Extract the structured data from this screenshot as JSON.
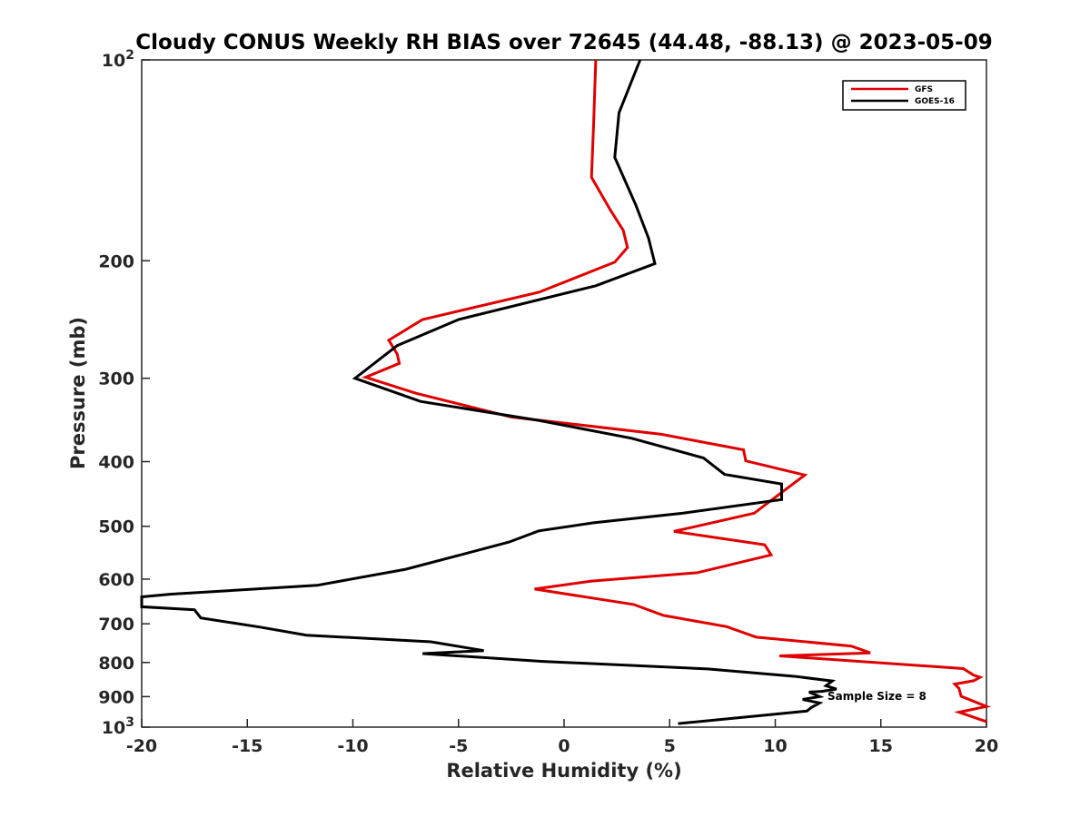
{
  "chart_data": {
    "type": "line",
    "title": "Cloudy CONUS Weekly RH BIAS over 72645 (44.48, -88.13) @ 2023-05-09",
    "xlabel": "Relative Humidity (%)",
    "ylabel": "Pressure (mb)",
    "xlim": [
      -20,
      20
    ],
    "ylim": [
      1000,
      100
    ],
    "y_scale": "log",
    "y_inverted": true,
    "grid": false,
    "x_ticks": [
      "-20",
      "-15",
      "-10",
      "-5",
      "0",
      "5",
      "10",
      "15",
      "20"
    ],
    "y_ticks": [
      {
        "value": 100,
        "base": "10",
        "exp": "2"
      },
      {
        "value": 200,
        "label": "200"
      },
      {
        "value": 300,
        "label": "300"
      },
      {
        "value": 400,
        "label": "400"
      },
      {
        "value": 500,
        "label": "500"
      },
      {
        "value": 600,
        "label": "600"
      },
      {
        "value": 700,
        "label": "700"
      },
      {
        "value": 800,
        "label": "800"
      },
      {
        "value": 900,
        "label": "900"
      },
      {
        "value": 1000,
        "base": "10",
        "exp": "3"
      }
    ],
    "legend_position": "top-right",
    "annotation": "Sample Size = 8",
    "series": [
      {
        "name": "GFS",
        "color": "#e00000",
        "points": [
          [
            1.5,
            100
          ],
          [
            1.4,
            125
          ],
          [
            1.3,
            150
          ],
          [
            2.2,
            168
          ],
          [
            2.8,
            180
          ],
          [
            3.0,
            191
          ],
          [
            2.4,
            201
          ],
          [
            -1.2,
            223
          ],
          [
            -6.7,
            245
          ],
          [
            -8.3,
            263
          ],
          [
            -7.9,
            276
          ],
          [
            -7.8,
            285
          ],
          [
            -9.4,
            299
          ],
          [
            -7.0,
            316
          ],
          [
            -2.5,
            343
          ],
          [
            4.6,
            364
          ],
          [
            8.5,
            384
          ],
          [
            8.6,
            399
          ],
          [
            11.4,
            419
          ],
          [
            9.7,
            460
          ],
          [
            9.0,
            478
          ],
          [
            5.2,
            509
          ],
          [
            9.5,
            533
          ],
          [
            9.8,
            552
          ],
          [
            6.3,
            587
          ],
          [
            1.3,
            604
          ],
          [
            -1.4,
            621
          ],
          [
            3.3,
            655
          ],
          [
            4.7,
            680
          ],
          [
            7.7,
            707
          ],
          [
            9.1,
            733
          ],
          [
            13.6,
            756
          ],
          [
            14.5,
            774
          ],
          [
            10.2,
            782
          ],
          [
            18.9,
            817
          ],
          [
            19.4,
            836
          ],
          [
            19.7,
            842
          ],
          [
            19.4,
            852
          ],
          [
            18.5,
            862
          ],
          [
            18.7,
            875
          ],
          [
            18.8,
            899
          ],
          [
            20.0,
            931
          ],
          [
            18.7,
            950
          ],
          [
            20.0,
            981
          ]
        ]
      },
      {
        "name": "GOES-16",
        "color": "#000000",
        "points": [
          [
            3.6,
            100
          ],
          [
            2.6,
            120
          ],
          [
            2.4,
            140
          ],
          [
            3.4,
            165
          ],
          [
            4.0,
            185
          ],
          [
            4.3,
            202
          ],
          [
            1.5,
            218
          ],
          [
            -5.0,
            245
          ],
          [
            -7.9,
            268
          ],
          [
            -9.9,
            300
          ],
          [
            -6.8,
            325
          ],
          [
            -1.2,
            347
          ],
          [
            3.2,
            369
          ],
          [
            6.6,
            395
          ],
          [
            7.6,
            418
          ],
          [
            10.3,
            432
          ],
          [
            10.3,
            456
          ],
          [
            5.6,
            478
          ],
          [
            1.4,
            494
          ],
          [
            -1.2,
            508
          ],
          [
            -2.6,
            528
          ],
          [
            -5.2,
            555
          ],
          [
            -7.5,
            580
          ],
          [
            -11.7,
            613
          ],
          [
            -18.6,
            632
          ],
          [
            -20.0,
            638
          ],
          [
            -20.0,
            660
          ],
          [
            -17.5,
            667
          ],
          [
            -17.2,
            686
          ],
          [
            -14.4,
            708
          ],
          [
            -12.2,
            728
          ],
          [
            -6.3,
            745
          ],
          [
            -3.8,
            768
          ],
          [
            -6.7,
            776
          ],
          [
            -1.0,
            797
          ],
          [
            6.8,
            818
          ],
          [
            11.0,
            840
          ],
          [
            12.7,
            853
          ],
          [
            12.4,
            867
          ],
          [
            12.9,
            877
          ],
          [
            12.2,
            884
          ],
          [
            11.6,
            886
          ],
          [
            12.1,
            900
          ],
          [
            11.3,
            909
          ],
          [
            12.1,
            920
          ],
          [
            11.7,
            935
          ],
          [
            11.5,
            946
          ],
          [
            9.6,
            959
          ],
          [
            5.4,
            988
          ]
        ]
      }
    ]
  }
}
